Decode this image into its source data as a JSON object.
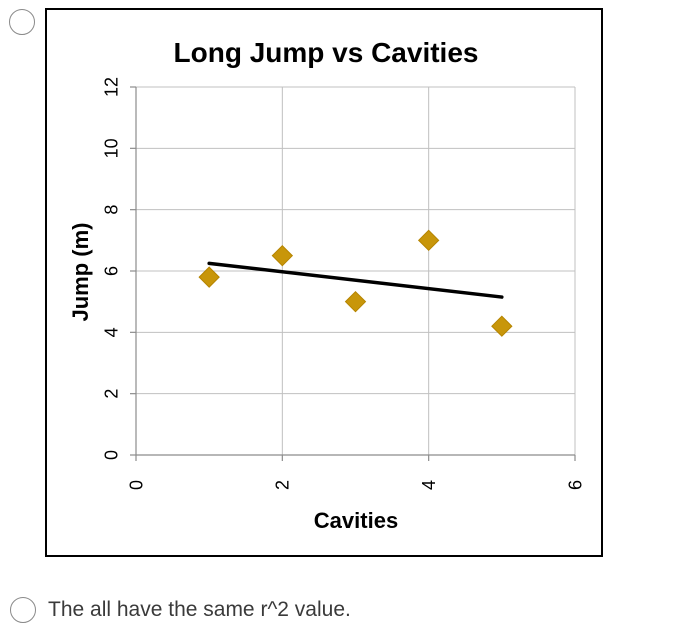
{
  "question": {
    "option_text": "The all have the same r^2 value."
  },
  "chart_data": {
    "type": "scatter",
    "title": "Long Jump vs Cavities",
    "xlabel": "Cavities",
    "ylabel": "Jump (m)",
    "xlim": [
      0,
      6
    ],
    "ylim": [
      0,
      12
    ],
    "xticks": [
      0,
      2,
      4,
      6
    ],
    "yticks": [
      0,
      2,
      4,
      6,
      8,
      10,
      12
    ],
    "grid": true,
    "legend": "none",
    "series": [
      {
        "points": [
          {
            "x": 1,
            "y": 5.8
          },
          {
            "x": 2,
            "y": 6.5
          },
          {
            "x": 3,
            "y": 5.0
          },
          {
            "x": 4,
            "y": 7.0
          },
          {
            "x": 5,
            "y": 4.2
          }
        ],
        "marker": "diamond",
        "color": "#C8960A"
      }
    ],
    "trendline": {
      "x_start": 1,
      "y_start": 6.25,
      "x_end": 5,
      "y_end": 5.15,
      "color": "#000000"
    }
  }
}
